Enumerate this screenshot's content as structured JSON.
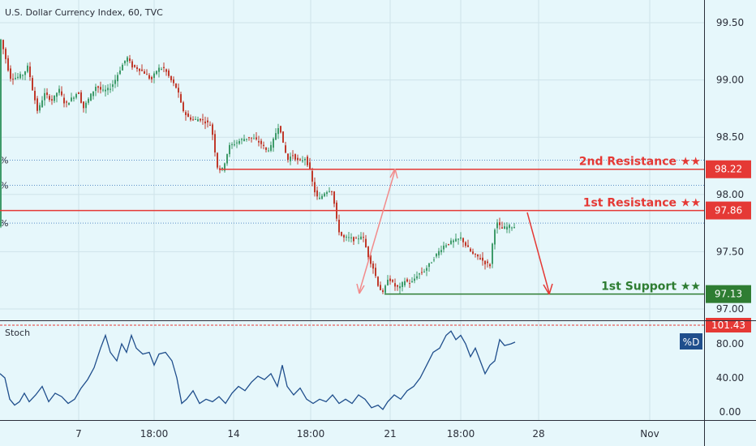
{
  "header": {
    "title": "U.S. Dollar Currency Index, 60, TVC"
  },
  "colors": {
    "background": "#e6f7fb",
    "bull": "#3e9b6a",
    "bear": "#c0392b",
    "resistance": "#e53935",
    "support": "#2e7d32",
    "stoch": "#1f4e8c",
    "grid": "#cfe3ea"
  },
  "chart_data": [
    {
      "type": "candlestick",
      "title": "U.S. Dollar Currency Index, 60, TVC",
      "yticks": [
        "99.50",
        "99.00",
        "98.50",
        "98.00",
        "97.50",
        "97.00"
      ],
      "ylim": [
        96.95,
        99.72
      ],
      "xticks": [
        "7",
        "18:00",
        "14",
        "18:00",
        "21",
        "18:00",
        "28",
        "Nov"
      ],
      "price_path": [
        [
          0,
          99.42
        ],
        [
          8,
          99.2
        ],
        [
          14,
          99.02
        ],
        [
          22,
          99.02
        ],
        [
          30,
          99.05
        ],
        [
          36,
          99.12
        ],
        [
          42,
          98.9
        ],
        [
          48,
          98.72
        ],
        [
          56,
          98.88
        ],
        [
          66,
          98.82
        ],
        [
          74,
          98.92
        ],
        [
          82,
          98.78
        ],
        [
          90,
          98.84
        ],
        [
          98,
          98.9
        ],
        [
          104,
          98.75
        ],
        [
          112,
          98.85
        ],
        [
          120,
          98.95
        ],
        [
          128,
          98.9
        ],
        [
          136,
          98.92
        ],
        [
          142,
          98.98
        ],
        [
          150,
          99.1
        ],
        [
          158,
          99.2
        ],
        [
          164,
          99.12
        ],
        [
          172,
          99.1
        ],
        [
          180,
          99.06
        ],
        [
          188,
          99.0
        ],
        [
          196,
          99.1
        ],
        [
          204,
          99.1
        ],
        [
          212,
          99.0
        ],
        [
          220,
          98.92
        ],
        [
          226,
          98.75
        ],
        [
          232,
          98.68
        ],
        [
          240,
          98.65
        ],
        [
          248,
          98.66
        ],
        [
          256,
          98.63
        ],
        [
          262,
          98.6
        ],
        [
          266,
          98.4
        ],
        [
          270,
          98.22
        ],
        [
          276,
          98.22
        ],
        [
          284,
          98.42
        ],
        [
          292,
          98.45
        ],
        [
          300,
          98.48
        ],
        [
          308,
          98.5
        ],
        [
          316,
          98.48
        ],
        [
          324,
          98.44
        ],
        [
          330,
          98.38
        ],
        [
          336,
          98.42
        ],
        [
          342,
          98.55
        ],
        [
          346,
          98.62
        ],
        [
          350,
          98.45
        ],
        [
          356,
          98.3
        ],
        [
          362,
          98.35
        ],
        [
          370,
          98.28
        ],
        [
          378,
          98.32
        ],
        [
          384,
          98.2
        ],
        [
          388,
          98.05
        ],
        [
          394,
          97.95
        ],
        [
          402,
          98.02
        ],
        [
          410,
          98.05
        ],
        [
          414,
          97.9
        ],
        [
          418,
          97.7
        ],
        [
          424,
          97.62
        ],
        [
          432,
          97.62
        ],
        [
          440,
          97.6
        ],
        [
          448,
          97.65
        ],
        [
          456,
          97.45
        ],
        [
          462,
          97.35
        ],
        [
          468,
          97.2
        ],
        [
          474,
          97.13
        ],
        [
          480,
          97.28
        ],
        [
          488,
          97.2
        ],
        [
          494,
          97.18
        ],
        [
          500,
          97.25
        ],
        [
          508,
          97.22
        ],
        [
          516,
          97.3
        ],
        [
          524,
          97.33
        ],
        [
          532,
          97.4
        ],
        [
          540,
          97.48
        ],
        [
          548,
          97.55
        ],
        [
          556,
          97.58
        ],
        [
          564,
          97.6
        ],
        [
          570,
          97.62
        ],
        [
          576,
          97.55
        ],
        [
          584,
          97.48
        ],
        [
          592,
          97.45
        ],
        [
          600,
          97.4
        ],
        [
          606,
          97.38
        ],
        [
          610,
          97.68
        ],
        [
          614,
          97.75
        ],
        [
          620,
          97.7
        ],
        [
          628,
          97.72
        ],
        [
          635,
          97.72
        ]
      ],
      "levels": [
        {
          "name": "2nd Resistance ★★",
          "value": "98.22",
          "color": "#e53935"
        },
        {
          "name": "1st Resistance ★★",
          "value": "97.86",
          "color": "#e53935"
        },
        {
          "name": "1st Support ★★",
          "value": "97.13",
          "color": "#2e7d32"
        }
      ],
      "fib_lines": [
        {
          "label": "%",
          "value": 98.3
        },
        {
          "label": "%",
          "value": 98.08
        },
        {
          "label": "%",
          "value": 97.75
        }
      ]
    },
    {
      "type": "line",
      "title": "Stoch",
      "legend": "%D",
      "yticks": [
        "80.00",
        "40.00",
        "0.00"
      ],
      "ylim": [
        -5,
        110
      ],
      "overbought_tag": "101.43",
      "series": [
        {
          "values": [
            [
              0,
              45
            ],
            [
              6,
              40
            ],
            [
              12,
              15
            ],
            [
              18,
              8
            ],
            [
              24,
              12
            ],
            [
              30,
              22
            ],
            [
              36,
              12
            ],
            [
              44,
              20
            ],
            [
              52,
              30
            ],
            [
              60,
              12
            ],
            [
              68,
              22
            ],
            [
              76,
              18
            ],
            [
              84,
              10
            ],
            [
              92,
              15
            ],
            [
              100,
              28
            ],
            [
              108,
              38
            ],
            [
              116,
              52
            ],
            [
              124,
              75
            ],
            [
              130,
              90
            ],
            [
              136,
              70
            ],
            [
              144,
              60
            ],
            [
              150,
              80
            ],
            [
              156,
              70
            ],
            [
              162,
              90
            ],
            [
              168,
              75
            ],
            [
              176,
              68
            ],
            [
              184,
              70
            ],
            [
              190,
              55
            ],
            [
              196,
              68
            ],
            [
              204,
              70
            ],
            [
              212,
              60
            ],
            [
              218,
              40
            ],
            [
              224,
              10
            ],
            [
              230,
              15
            ],
            [
              238,
              25
            ],
            [
              246,
              10
            ],
            [
              254,
              15
            ],
            [
              262,
              12
            ],
            [
              270,
              18
            ],
            [
              278,
              10
            ],
            [
              286,
              22
            ],
            [
              294,
              30
            ],
            [
              302,
              25
            ],
            [
              310,
              35
            ],
            [
              318,
              42
            ],
            [
              326,
              38
            ],
            [
              334,
              45
            ],
            [
              342,
              30
            ],
            [
              348,
              55
            ],
            [
              354,
              30
            ],
            [
              362,
              20
            ],
            [
              370,
              28
            ],
            [
              378,
              15
            ],
            [
              386,
              10
            ],
            [
              394,
              15
            ],
            [
              402,
              12
            ],
            [
              410,
              20
            ],
            [
              418,
              10
            ],
            [
              426,
              15
            ],
            [
              434,
              10
            ],
            [
              442,
              20
            ],
            [
              450,
              15
            ],
            [
              458,
              5
            ],
            [
              466,
              8
            ],
            [
              472,
              3
            ],
            [
              478,
              12
            ],
            [
              486,
              20
            ],
            [
              494,
              15
            ],
            [
              502,
              25
            ],
            [
              510,
              30
            ],
            [
              518,
              40
            ],
            [
              526,
              55
            ],
            [
              534,
              70
            ],
            [
              542,
              75
            ],
            [
              550,
              90
            ],
            [
              556,
              95
            ],
            [
              562,
              85
            ],
            [
              568,
              90
            ],
            [
              574,
              80
            ],
            [
              580,
              65
            ],
            [
              586,
              75
            ],
            [
              592,
              60
            ],
            [
              598,
              45
            ],
            [
              604,
              55
            ],
            [
              610,
              60
            ],
            [
              616,
              85
            ],
            [
              622,
              78
            ],
            [
              630,
              80
            ],
            [
              635,
              82
            ]
          ]
        }
      ]
    }
  ]
}
